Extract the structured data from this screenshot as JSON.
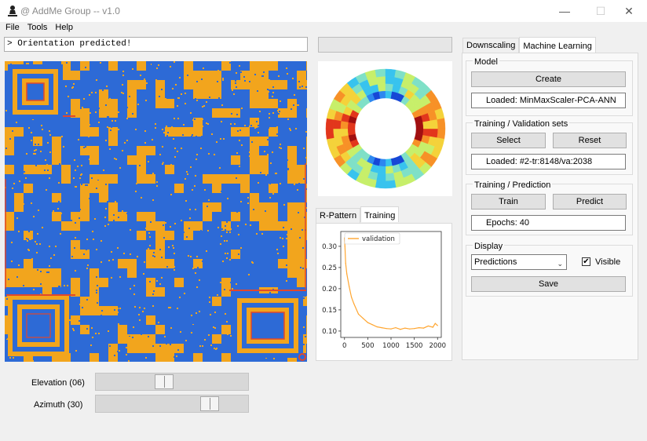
{
  "window": {
    "title": "@ AddMe Group -- v1.0",
    "controls": {
      "minimize": "—",
      "maximize": "☐",
      "close": "✕"
    }
  },
  "menu": [
    "File",
    "Tools",
    "Help"
  ],
  "console": {
    "text": "> Orientation predicted!"
  },
  "sliders": [
    {
      "label": "Elevation (06)",
      "position": 0.44
    },
    {
      "label": "Azimuth (30)",
      "position": 0.78
    }
  ],
  "middle": {
    "tabs": [
      "R-Pattern",
      "Training"
    ],
    "active_tab": "Training"
  },
  "chart_data": {
    "type": "line",
    "title": "",
    "xlabel": "",
    "ylabel": "",
    "xlim": [
      -80,
      2080
    ],
    "ylim": [
      0.085,
      0.335
    ],
    "x_ticks": [
      0,
      500,
      1000,
      1500,
      2000
    ],
    "y_ticks": [
      0.1,
      0.15,
      0.2,
      0.25,
      0.3
    ],
    "x_tick_labels": [
      "0",
      "500",
      "1000",
      "1500",
      "2000"
    ],
    "y_tick_labels": [
      "0.10",
      "0.15",
      "0.20",
      "0.25",
      "0.30"
    ],
    "legend": "upper-center",
    "series": [
      {
        "name": "validation",
        "color": "#ffa631",
        "x": [
          0,
          10,
          25,
          50,
          100,
          150,
          200,
          300,
          400,
          500,
          600,
          700,
          800,
          900,
          1000,
          1100,
          1200,
          1300,
          1400,
          1500,
          1600,
          1700,
          1800,
          1900,
          1950,
          2000
        ],
        "y": [
          0.32,
          0.3,
          0.26,
          0.235,
          0.205,
          0.18,
          0.165,
          0.14,
          0.13,
          0.12,
          0.115,
          0.11,
          0.108,
          0.106,
          0.105,
          0.108,
          0.104,
          0.107,
          0.105,
          0.106,
          0.108,
          0.107,
          0.112,
          0.109,
          0.118,
          0.113
        ]
      }
    ]
  },
  "right": {
    "tabs": [
      "Downscaling",
      "Machine Learning"
    ],
    "active_tab": "Machine Learning",
    "model": {
      "title": "Model",
      "create_button": "Create",
      "loaded_text": "Loaded:   MinMaxScaler-PCA-ANN"
    },
    "sets": {
      "title": "Training / Validation sets",
      "select_button": "Select",
      "reset_button": "Reset",
      "loaded_text": "Loaded:   #2-tr:8148/va:2038"
    },
    "training": {
      "title": "Training / Prediction",
      "train_button": "Train",
      "predict_button": "Predict",
      "epochs_text": "Epochs:   40"
    },
    "display": {
      "title": "Display",
      "select_value": "Predictions",
      "visible_label": "Visible",
      "visible_checked": "✔",
      "save_button": "Save"
    }
  },
  "colors": {
    "map_orange": "#f2a51d",
    "map_blue": "#2d6ad6",
    "map_red": "#e0482d",
    "line_orange": "#ffa631"
  }
}
